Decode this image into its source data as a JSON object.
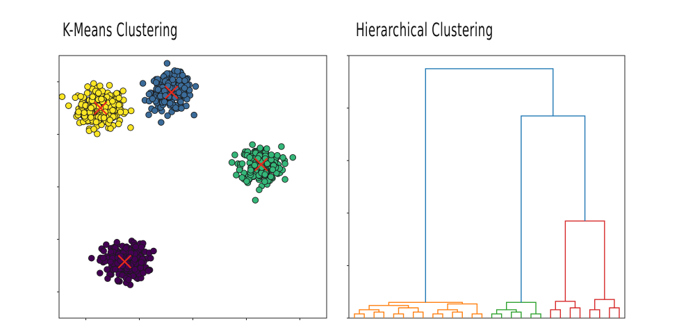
{
  "chart_data": [
    {
      "type": "scatter",
      "title": "K-Means Clustering",
      "xlim": [
        -10,
        10
      ],
      "ylim": [
        -10,
        10
      ],
      "xticks": [
        -8,
        -4,
        0,
        4,
        8
      ],
      "yticks": [
        -8,
        -4,
        0,
        4,
        8
      ],
      "tick_labels_shown": false,
      "marker": "circle",
      "centroid_marker": "x",
      "centroid_color": "#e8291c",
      "series": [
        {
          "color": "#fde725",
          "center": [
            -6.9,
            6.0
          ],
          "spread": [
            1.1,
            1.0
          ],
          "count": 260
        },
        {
          "color": "#3b6c9a",
          "center": [
            -1.6,
            7.2
          ],
          "spread": [
            1.0,
            0.9
          ],
          "count": 240
        },
        {
          "color": "#35b779",
          "center": [
            5.1,
            1.7
          ],
          "spread": [
            1.0,
            0.9
          ],
          "count": 250
        },
        {
          "color": "#440154",
          "center": [
            -5.1,
            -5.7
          ],
          "spread": [
            1.1,
            0.9
          ],
          "count": 250
        }
      ]
    },
    {
      "type": "dendrogram",
      "title": "Hierarchical Clustering",
      "ylim": [
        0,
        100
      ],
      "yticks": [
        0,
        20,
        40,
        60,
        80,
        100
      ],
      "tick_labels_shown": false,
      "top_merges": [
        {
          "left": "orange",
          "right": "upper",
          "height": 95,
          "color": "#1f77b4"
        },
        {
          "left": "green",
          "right": "red",
          "height": 77,
          "name": "upper",
          "color": "#1f77b4"
        }
      ],
      "clusters": [
        {
          "name": "orange",
          "color": "#ff7f0e",
          "merge_height": 6,
          "leaf_start": 0,
          "leaf_end": 13
        },
        {
          "name": "green",
          "color": "#2ca02c",
          "merge_height": 6,
          "leaf_start": 14,
          "leaf_end": 19
        },
        {
          "name": "red",
          "color": "#d62728",
          "merge_height": 37,
          "leaf_start": 20,
          "leaf_end": 27
        }
      ],
      "leaf_count": 28
    }
  ]
}
